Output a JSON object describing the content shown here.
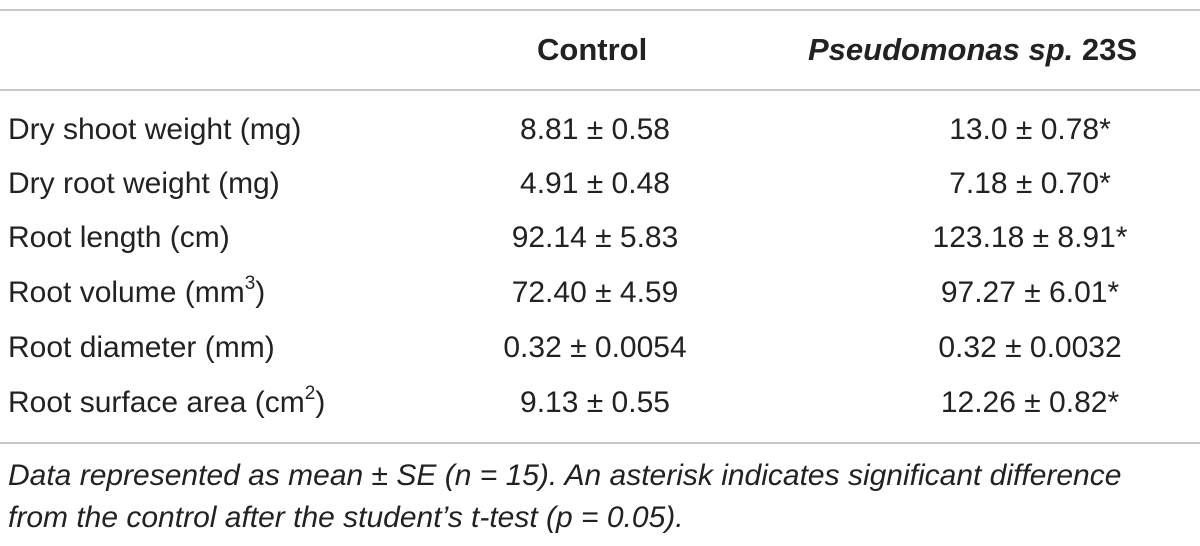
{
  "table": {
    "headers": {
      "control": "Control",
      "treatment_italic": "Pseudomonas sp.",
      "treatment_strain": "23S"
    },
    "rows": [
      {
        "label": "Dry shoot weight (mg)",
        "label_sup": "",
        "label_end": "",
        "control": "8.81 ± 0.58",
        "treatment": "13.0 ± 0.78",
        "treatment_mark": "*"
      },
      {
        "label": "Dry root weight (mg)",
        "label_sup": "",
        "label_end": "",
        "control": "4.91 ± 0.48",
        "treatment": "7.18 ± 0.70",
        "treatment_mark": "*"
      },
      {
        "label": "Root length (cm)",
        "label_sup": "",
        "label_end": "",
        "control": "92.14 ± 5.83",
        "treatment": "123.18 ± 8.91",
        "treatment_mark": "*"
      },
      {
        "label": "Root volume (mm",
        "label_sup": "3",
        "label_end": ")",
        "control": "72.40 ± 4.59",
        "treatment": "97.27 ± 6.01",
        "treatment_mark": "*"
      },
      {
        "label": "Root diameter (mm)",
        "label_sup": "",
        "label_end": "",
        "control": "0.32 ± 0.0054",
        "treatment": "0.32 ± 0.0032",
        "treatment_mark": ""
      },
      {
        "label": "Root surface area (cm",
        "label_sup": "2",
        "label_end": ")",
        "control": "9.13 ± 0.55",
        "treatment": "12.26 ± 0.82",
        "treatment_mark": "*"
      }
    ],
    "footnote_line1": "Data represented as mean ± SE (n = 15). An asterisk indicates significant difference",
    "footnote_line2": "from the control after the student’s t-test (p = 0.05)."
  }
}
